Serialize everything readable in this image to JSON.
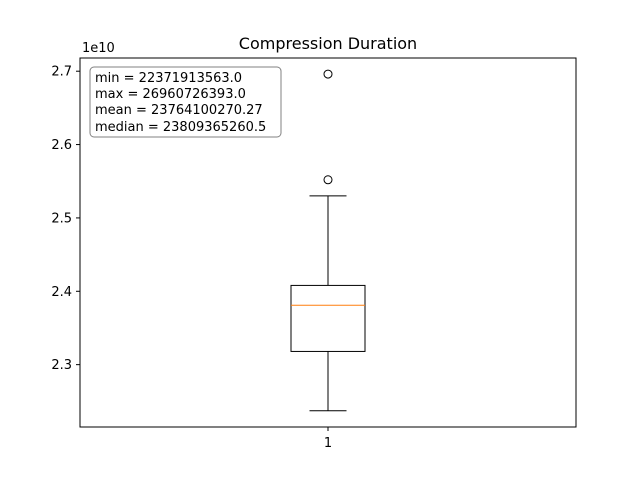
{
  "chart_data": {
    "type": "box",
    "title": "Compression Duration",
    "xlabel": "",
    "ylabel": "",
    "y_offset_label": "1e10",
    "y_scale": 10000000000,
    "categories": [
      "1"
    ],
    "ylim": [
      22150000000,
      27180000000
    ],
    "yticks": [
      23000000000,
      24000000000,
      25000000000,
      26000000000,
      27000000000
    ],
    "ytick_labels": [
      "2.3",
      "2.4",
      "2.5",
      "2.6",
      "2.7"
    ],
    "box": {
      "whisker_low": 22371913563.0,
      "q1": 23180000000,
      "median": 23809365260.5,
      "q3": 24080000000,
      "whisker_high": 25300000000,
      "fliers": [
        25520000000,
        26960726393.0
      ]
    },
    "stats_box": {
      "lines": [
        "min = 22371913563.0",
        "max = 26960726393.0",
        "mean = 23764100270.27",
        "median = 23809365260.5"
      ]
    },
    "grid": false,
    "colors": {
      "box": "#000000",
      "median": "#ff7f0e",
      "whisker": "#000000",
      "flier": "#000000",
      "stats_border": "#808080"
    }
  }
}
